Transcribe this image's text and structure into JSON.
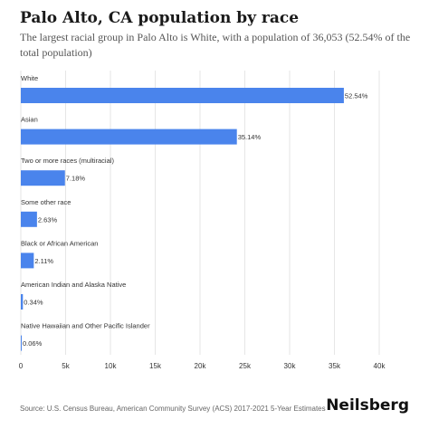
{
  "header": {
    "title": "Palo Alto, CA population by race",
    "subtitle": "The largest racial group in Palo Alto is White, with a population of 36,053 (52.54% of the total population)"
  },
  "footer": {
    "source": "Source: U.S. Census Bureau, American Community Survey (ACS) 2017-2021 5-Year Estimates",
    "brand": "Neilsberg"
  },
  "colors": {
    "bar": "#4a84ec",
    "grid": "#e6e6e6",
    "text": "#333333"
  },
  "chart_data": {
    "type": "bar",
    "orientation": "horizontal",
    "categories": [
      "White",
      "Asian",
      "Two or more races (multiracial)",
      "Some other race",
      "Black or African American",
      "American Indian and Alaska Native",
      "Native Hawaiian and Other Pacific Islander"
    ],
    "values": [
      36053,
      24113,
      4927,
      1805,
      1448,
      233,
      41
    ],
    "value_labels": [
      "52.54%",
      "35.14%",
      "7.18%",
      "2.63%",
      "2.11%",
      "0.34%",
      "0.06%"
    ],
    "xlim": [
      0,
      40000
    ],
    "xticks": [
      0,
      5000,
      10000,
      15000,
      20000,
      25000,
      30000,
      35000,
      40000
    ],
    "xtick_labels": [
      "0",
      "5k",
      "10k",
      "15k",
      "20k",
      "25k",
      "30k",
      "35k",
      "40k"
    ],
    "grid": true
  }
}
